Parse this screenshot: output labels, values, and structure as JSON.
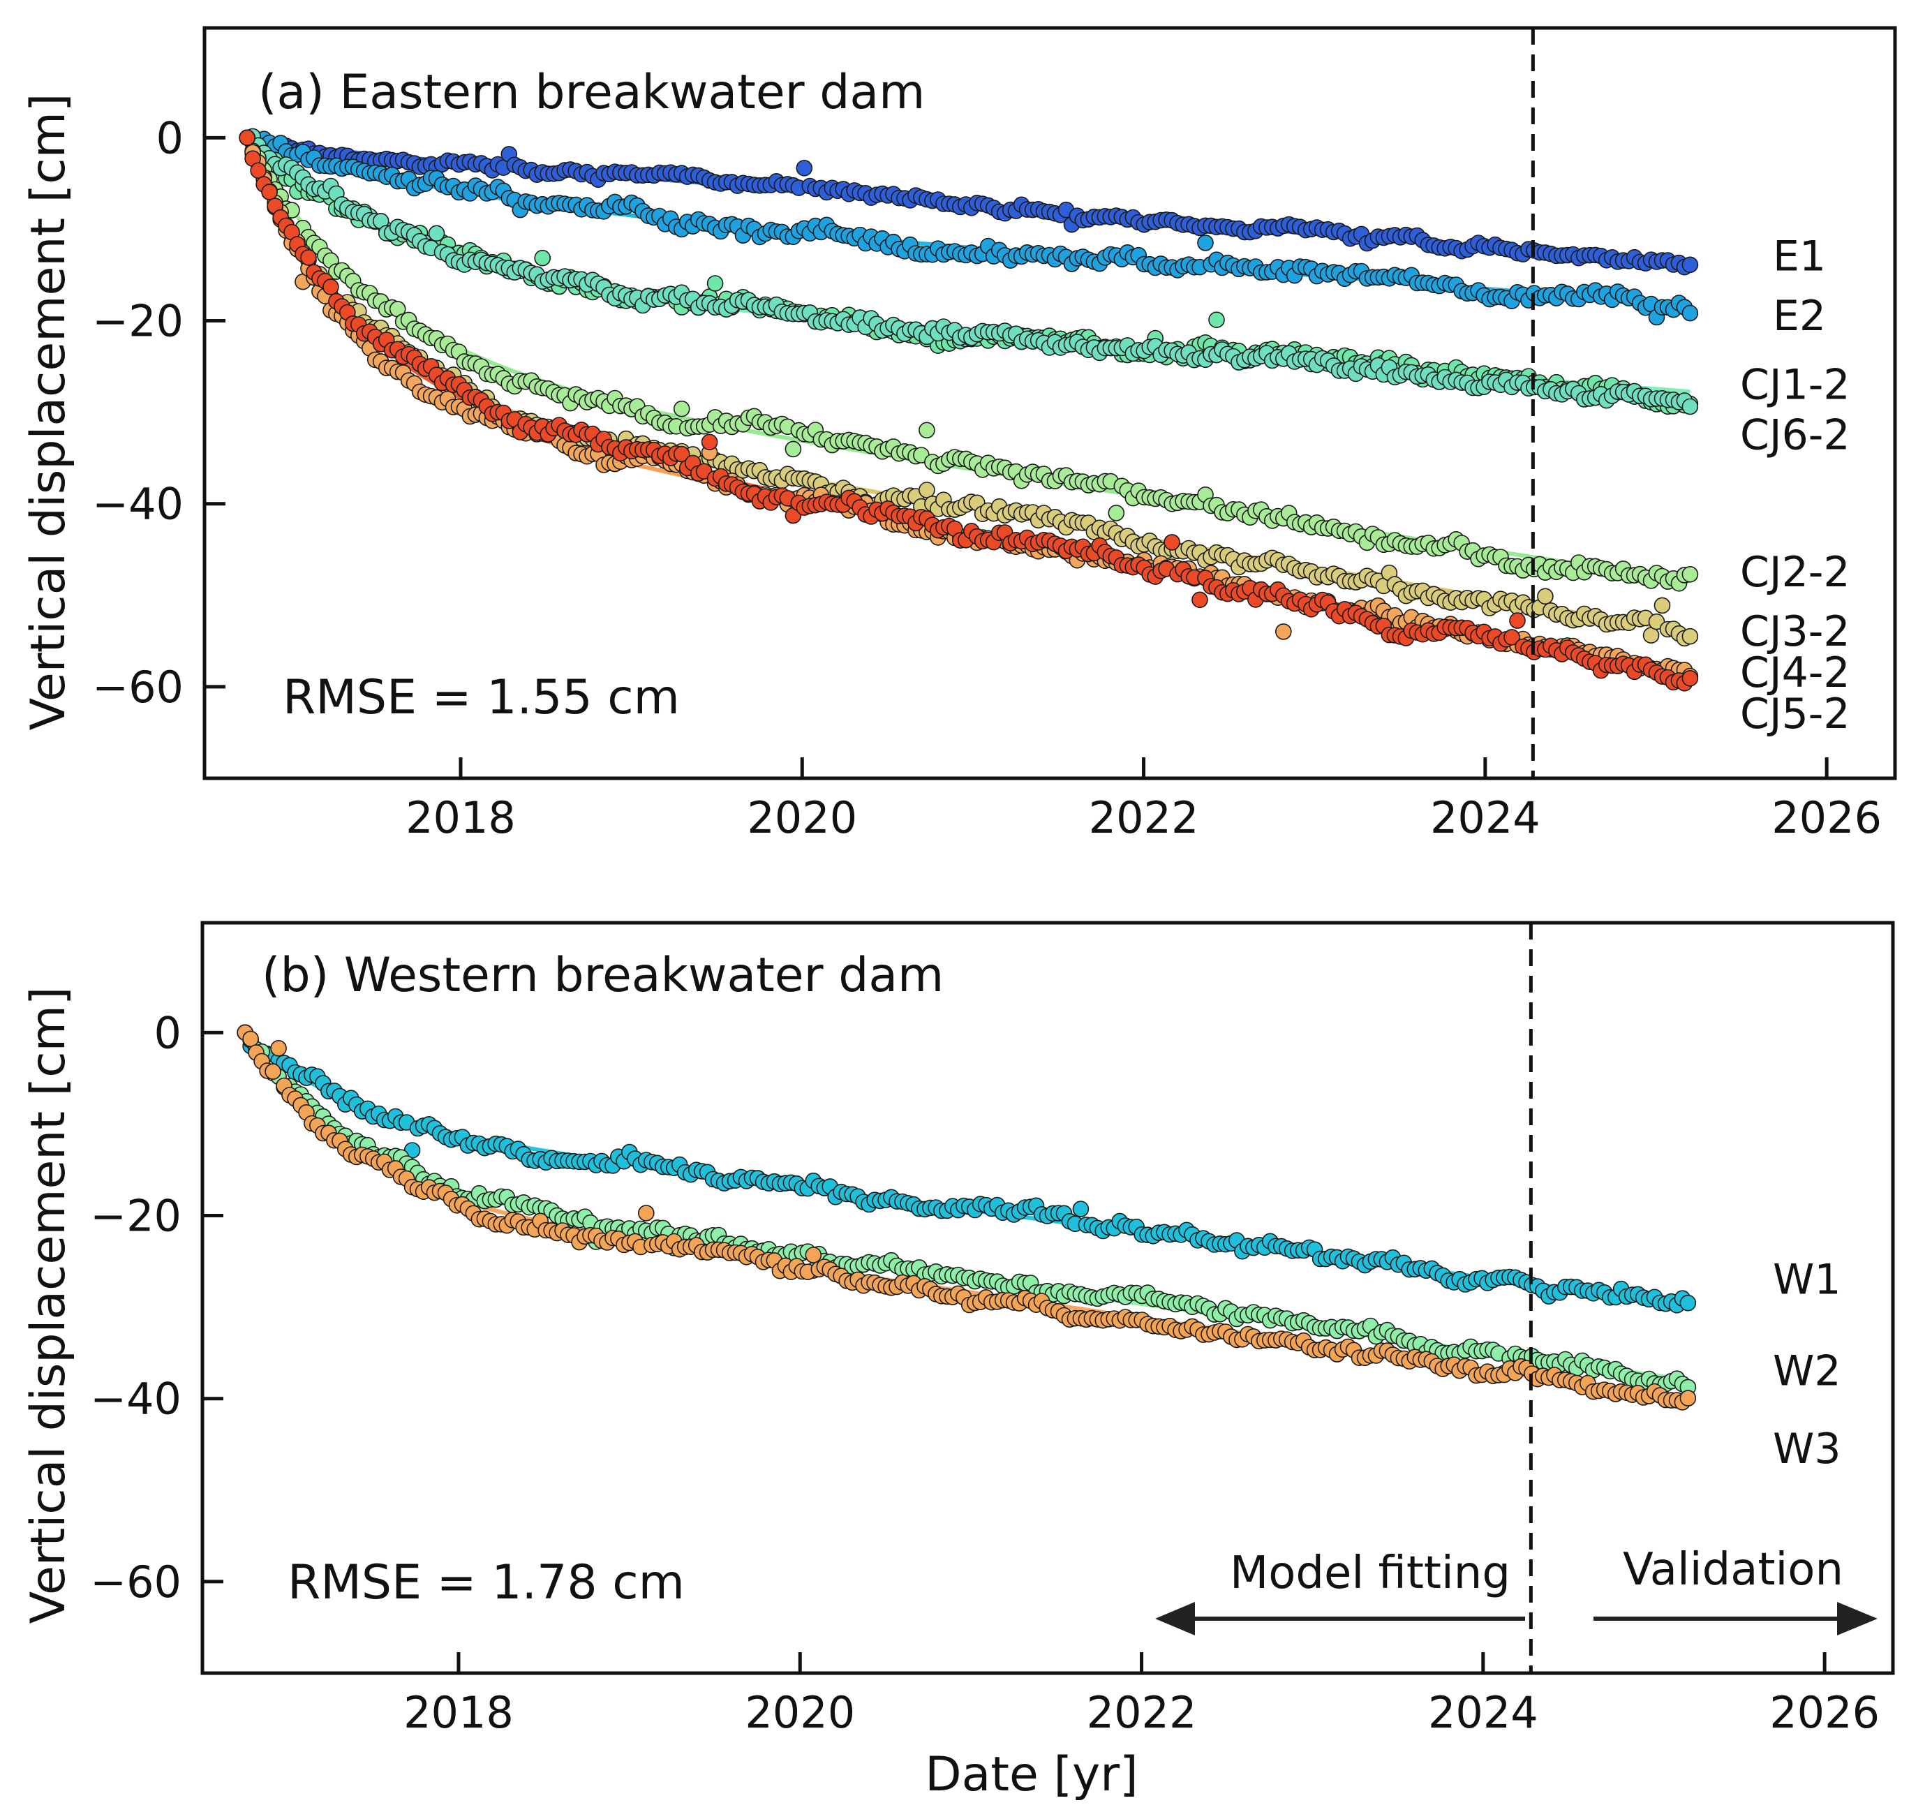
{
  "figure": {
    "xlabel": "Date [yr]",
    "model_fitting_label": "Model fitting",
    "validation_label": "Validation"
  },
  "chart_data": [
    {
      "type": "scatter",
      "title": "(a) Eastern breakwater dam",
      "ylabel": "Vertical displacement [cm]",
      "xlabel": "",
      "xlim": [
        2016.5,
        2026.4
      ],
      "ylim": [
        -70,
        12
      ],
      "x_ticks": [
        2018,
        2020,
        2022,
        2024,
        2026
      ],
      "x_tick_labels": [
        "2018",
        "2020",
        "2022",
        "2024",
        "2026"
      ],
      "y_ticks": [
        0,
        -20,
        -40,
        -60
      ],
      "y_tick_labels": [
        "0",
        "−20",
        "−40",
        "−60"
      ],
      "split_date": 2024.28,
      "rmse_label": "RMSE =  1.55 cm",
      "x_start": 2016.75,
      "x_end": 2025.2,
      "series": [
        {
          "name": "E1",
          "color": "#2f5fd8",
          "line_color": "#2f63e0",
          "fit": {
            "a": 0.8,
            "tau": 0.4,
            "rate": 1.55,
            "offset": 0
          },
          "noise": 0.9,
          "label_value": -13
        },
        {
          "name": "E2",
          "color": "#1fa3e0",
          "line_color": "#22b5e6",
          "fit": {
            "a": 6.0,
            "tau": 1.1,
            "rate": 1.45,
            "offset": 0
          },
          "noise": 1.6,
          "label_value": -19.5
        },
        {
          "name": "CJ1-2",
          "color": "#6ee8a8",
          "line_color": "#7cf0b8",
          "fit": {
            "a": 15.5,
            "tau": 1.0,
            "rate": 1.45,
            "offset": 0
          },
          "noise": 1.6,
          "label_value": -27
        },
        {
          "name": "CJ6-2",
          "color": "#6ee0c0",
          "line_color": "#66e0c8",
          "fit": {
            "a": 14.0,
            "tau": 0.9,
            "rate": 1.75,
            "offset": 0
          },
          "noise": 1.4,
          "label_value": -32.5
        },
        {
          "name": "CJ2-2",
          "color": "#a8ec98",
          "line_color": "#96ea90",
          "fit": {
            "a": 24.0,
            "tau": 0.75,
            "rate": 2.9,
            "offset": 0
          },
          "noise": 1.5,
          "label_value": -47.5
        },
        {
          "name": "CJ3-2",
          "color": "#d9cc7a",
          "line_color": "#d8c66e",
          "fit": {
            "a": 27.0,
            "tau": 0.6,
            "rate": 3.2,
            "offset": 0
          },
          "noise": 1.5,
          "label_value": -54
        },
        {
          "name": "CJ4-2",
          "color": "#f4a65a",
          "line_color": "#f6a055",
          "fit": {
            "a": 28.0,
            "tau": 0.55,
            "rate": 3.6,
            "offset": 0
          },
          "noise": 1.5,
          "label_value": -58.5
        },
        {
          "name": "CJ5-2",
          "color": "#ec4a26",
          "line_color": "#ee5a2a",
          "fit": {
            "a": 27.0,
            "tau": 0.6,
            "rate": 3.8,
            "offset": 0
          },
          "noise": 1.7,
          "label_value": -63
        }
      ]
    },
    {
      "type": "scatter",
      "title": "(b) Western breakwater dam",
      "ylabel": "Vertical displacement [cm]",
      "xlabel": "Date [yr]",
      "xlim": [
        2016.5,
        2026.4
      ],
      "ylim": [
        -70,
        12
      ],
      "x_ticks": [
        2018,
        2020,
        2022,
        2024,
        2026
      ],
      "x_tick_labels": [
        "2018",
        "2020",
        "2022",
        "2024",
        "2026"
      ],
      "y_ticks": [
        0,
        -20,
        -40,
        -60
      ],
      "y_tick_labels": [
        "0",
        "−20",
        "−40",
        "−60"
      ],
      "split_date": 2024.28,
      "rmse_label": "RMSE =  1.78 cm",
      "x_start": 2016.75,
      "x_end": 2025.2,
      "series": [
        {
          "name": "W1",
          "color": "#1fc0dc",
          "line_color": "#22c4e2",
          "fit": {
            "a": 9.0,
            "tau": 0.55,
            "rate": 2.45,
            "offset": 0
          },
          "noise": 1.4,
          "label_value": -27
        },
        {
          "name": "W2",
          "color": "#8ef0a8",
          "line_color": "#8ef2a8",
          "fit": {
            "a": 16.0,
            "tau": 0.6,
            "rate": 2.6,
            "offset": 0
          },
          "noise": 1.3,
          "label_value": -37
        },
        {
          "name": "W3",
          "color": "#f4a455",
          "line_color": "#f6a860",
          "fit": {
            "a": 16.5,
            "tau": 0.55,
            "rate": 2.8,
            "offset": 0
          },
          "noise": 1.4,
          "label_value": -45.5
        }
      ]
    }
  ]
}
